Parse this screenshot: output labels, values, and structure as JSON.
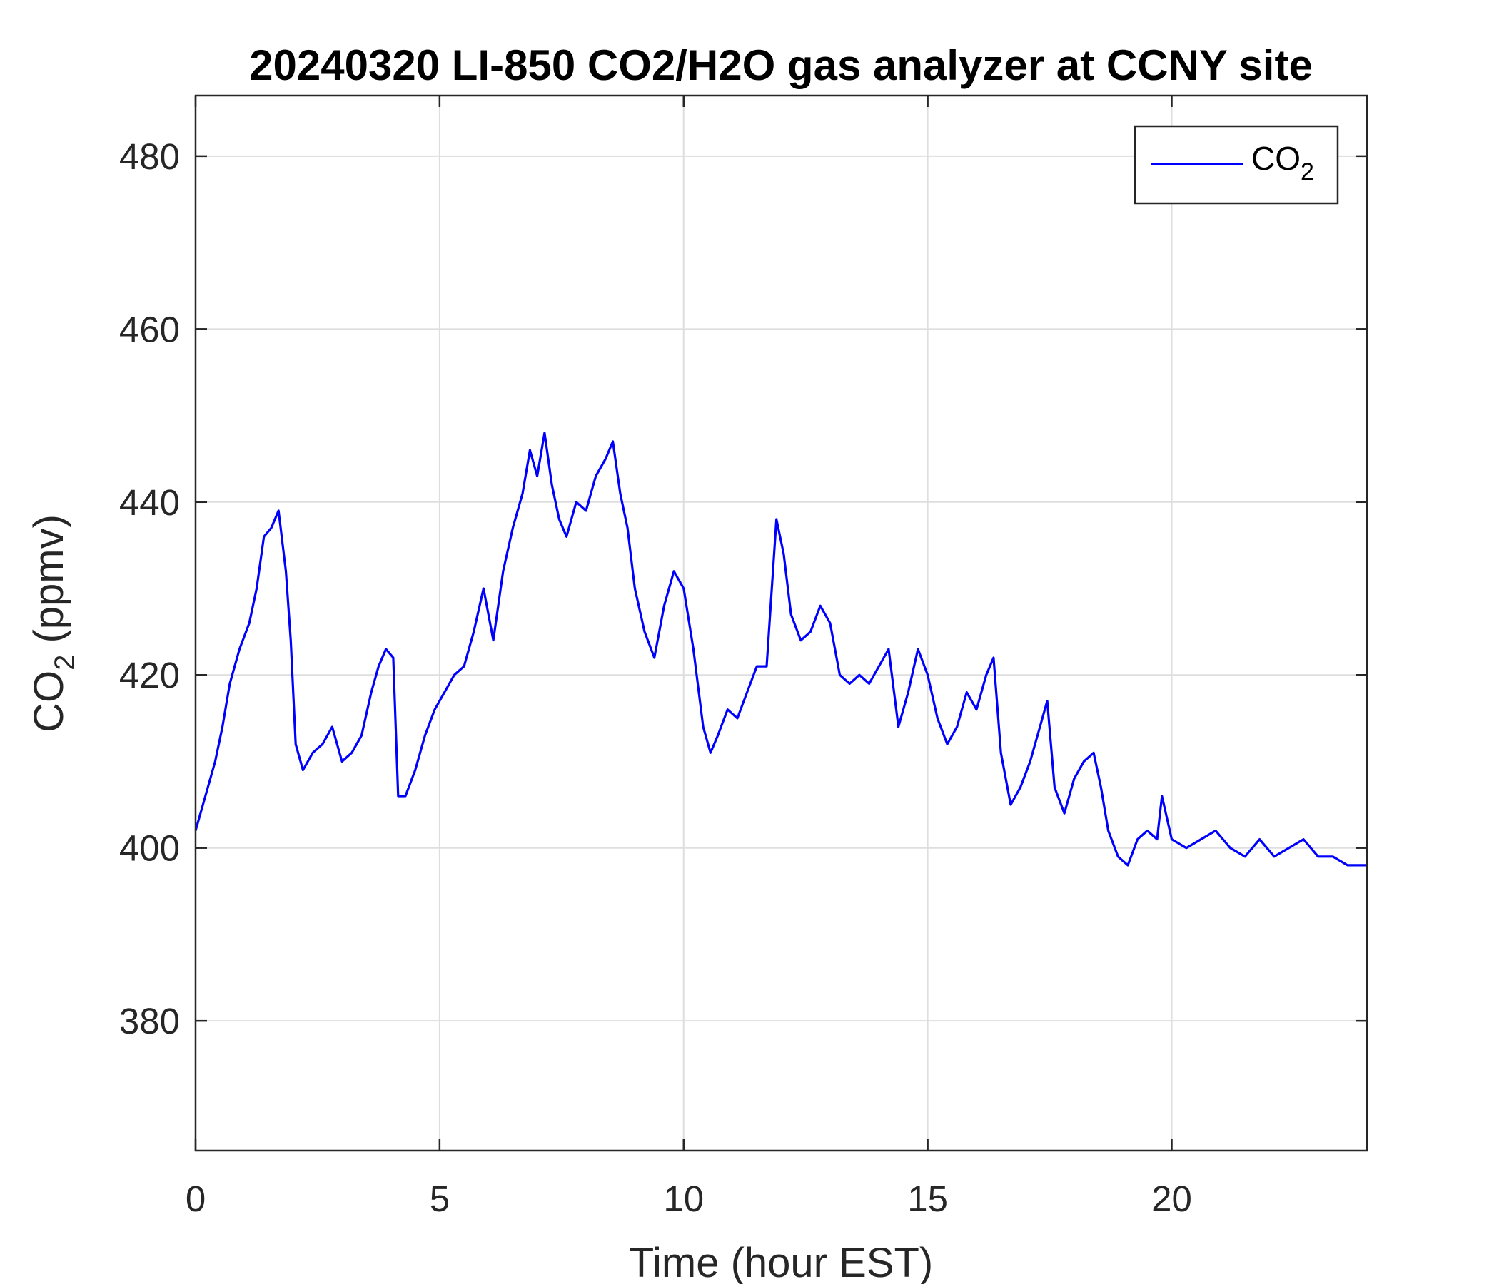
{
  "chart_data": {
    "type": "line",
    "title": "20240320 LI-850 CO2/H2O gas analyzer at CCNY site",
    "xlabel": "Time (hour EST)",
    "ylabel": {
      "base": "CO",
      "sub": "2",
      "rest": " (ppmv)"
    },
    "xlim": [
      0,
      24
    ],
    "ylim": [
      365,
      487
    ],
    "xticks": [
      0,
      5,
      10,
      15,
      20
    ],
    "yticks": [
      380,
      400,
      420,
      440,
      460,
      480
    ],
    "grid": true,
    "legend_position": "top-right",
    "series": [
      {
        "name": {
          "base": "CO",
          "sub": "2"
        },
        "color": "#0000ff",
        "x": [
          0.0,
          0.2,
          0.4,
          0.55,
          0.7,
          0.9,
          1.1,
          1.25,
          1.4,
          1.55,
          1.7,
          1.85,
          1.95,
          2.05,
          2.2,
          2.4,
          2.6,
          2.8,
          3.0,
          3.2,
          3.4,
          3.6,
          3.75,
          3.9,
          4.05,
          4.15,
          4.3,
          4.5,
          4.7,
          4.9,
          5.1,
          5.3,
          5.5,
          5.7,
          5.9,
          6.1,
          6.3,
          6.5,
          6.7,
          6.85,
          7.0,
          7.15,
          7.3,
          7.45,
          7.6,
          7.8,
          8.0,
          8.2,
          8.4,
          8.55,
          8.7,
          8.85,
          9.0,
          9.2,
          9.4,
          9.6,
          9.8,
          10.0,
          10.2,
          10.4,
          10.55,
          10.7,
          10.9,
          11.1,
          11.3,
          11.5,
          11.7,
          11.9,
          12.05,
          12.2,
          12.4,
          12.6,
          12.8,
          13.0,
          13.2,
          13.4,
          13.6,
          13.8,
          14.0,
          14.2,
          14.4,
          14.6,
          14.8,
          15.0,
          15.2,
          15.4,
          15.6,
          15.8,
          16.0,
          16.2,
          16.35,
          16.5,
          16.7,
          16.9,
          17.1,
          17.3,
          17.45,
          17.6,
          17.8,
          18.0,
          18.2,
          18.4,
          18.55,
          18.7,
          18.9,
          19.1,
          19.3,
          19.5,
          19.7,
          19.8,
          20.0,
          20.3,
          20.6,
          20.9,
          21.2,
          21.5,
          21.8,
          22.1,
          22.4,
          22.7,
          23.0,
          23.3,
          23.6,
          24.0
        ],
        "values": [
          402,
          406,
          410,
          414,
          419,
          423,
          426,
          430,
          436,
          437,
          439,
          432,
          424,
          412,
          409,
          411,
          412,
          414,
          410,
          411,
          413,
          418,
          421,
          423,
          422,
          406,
          406,
          409,
          413,
          416,
          418,
          420,
          421,
          425,
          430,
          424,
          432,
          437,
          441,
          446,
          443,
          448,
          442,
          438,
          436,
          440,
          439,
          443,
          445,
          447,
          441,
          437,
          430,
          425,
          422,
          428,
          432,
          430,
          423,
          414,
          411,
          413,
          416,
          415,
          418,
          421,
          421,
          438,
          434,
          427,
          424,
          425,
          428,
          426,
          420,
          419,
          420,
          419,
          421,
          423,
          414,
          418,
          423,
          420,
          415,
          412,
          414,
          418,
          416,
          420,
          422,
          411,
          405,
          407,
          410,
          414,
          417,
          407,
          404,
          408,
          410,
          411,
          407,
          402,
          399,
          398,
          401,
          402,
          401,
          406,
          401,
          400,
          401,
          402,
          400,
          399,
          401,
          399,
          400,
          401,
          399,
          399,
          398,
          398
        ]
      }
    ]
  }
}
